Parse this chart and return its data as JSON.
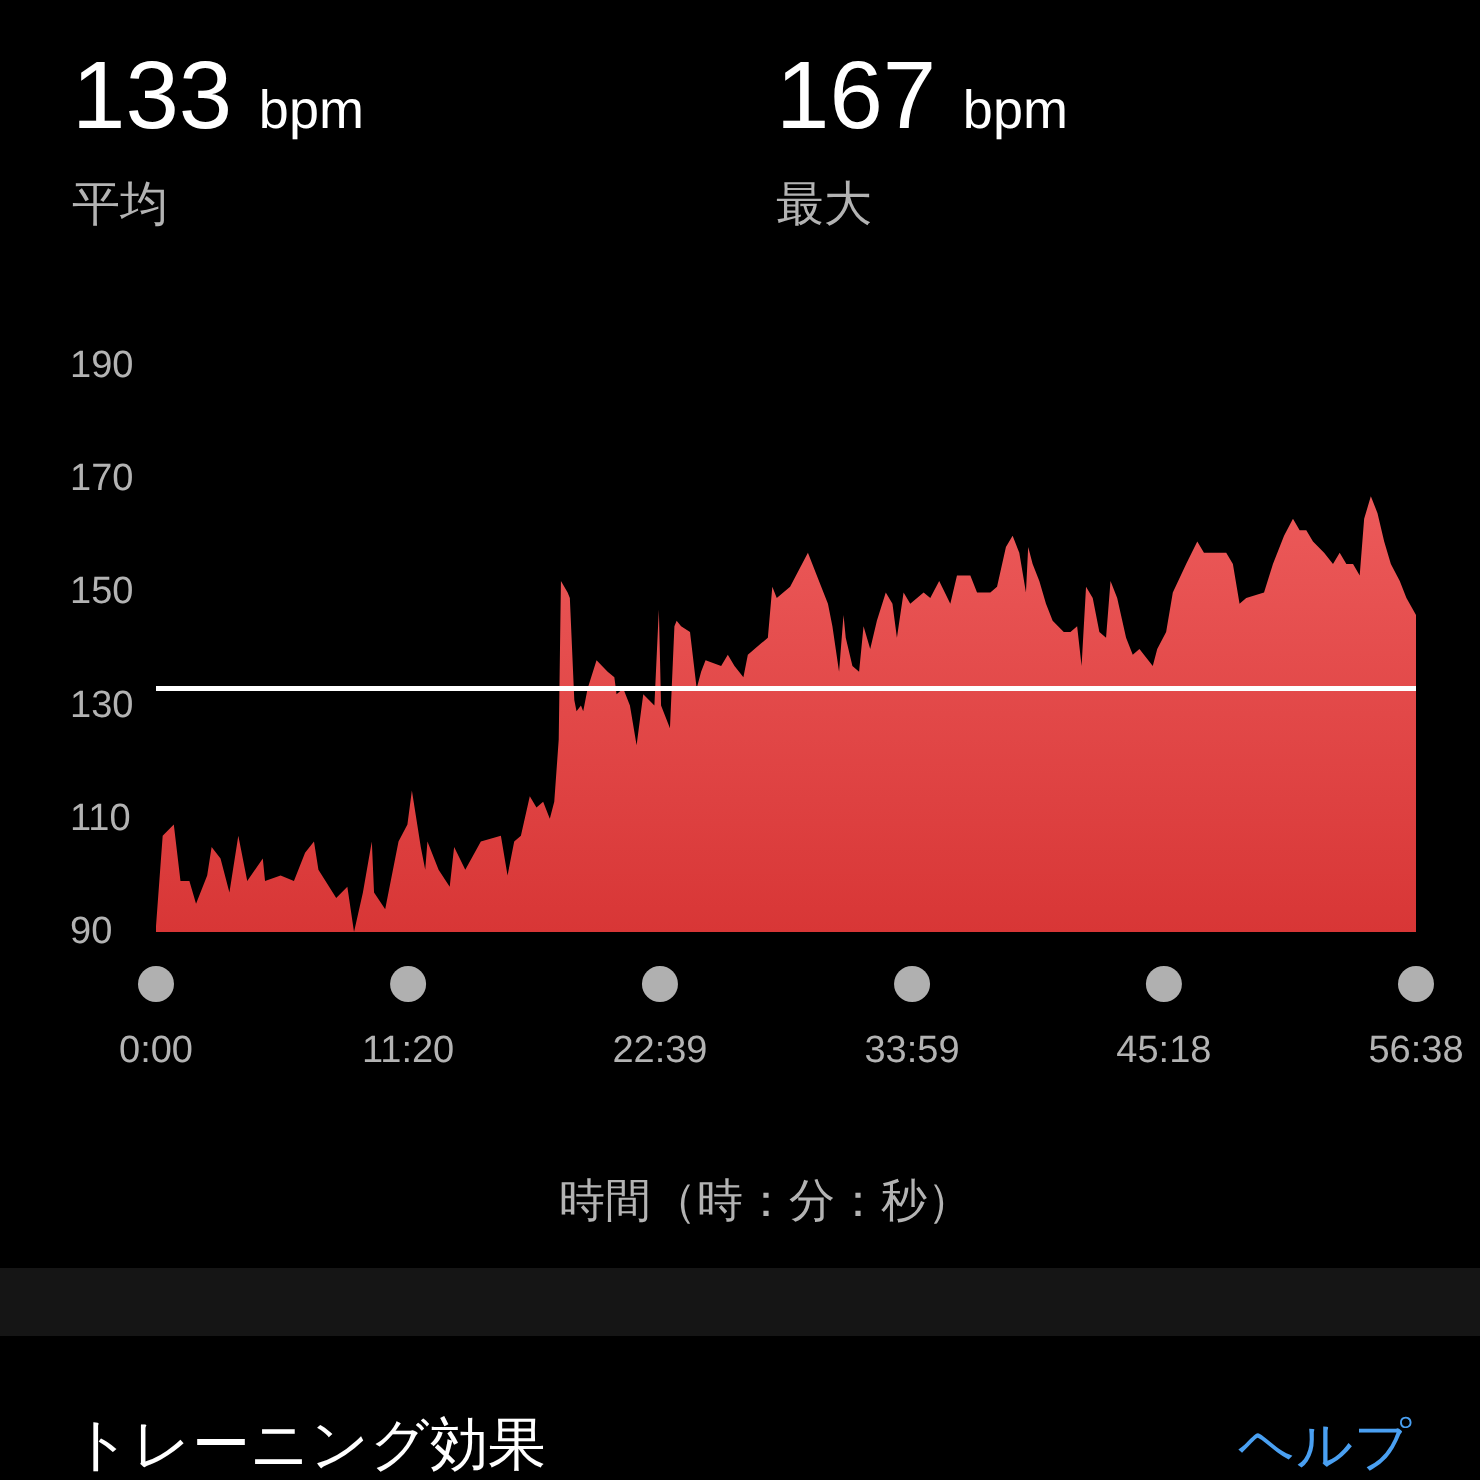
{
  "chart_data": {
    "type": "area",
    "x": [
      0,
      0.3,
      0.8,
      1.1,
      1.5,
      1.8,
      2.3,
      2.5,
      2.9,
      3.3,
      3.7,
      4.1,
      4.8,
      4.9,
      5.6,
      6.2,
      6.7,
      7.1,
      7.3,
      8.1,
      8.6,
      8.9,
      9.3,
      9.7,
      9.8,
      10.3,
      10.9,
      11.3,
      11.5,
      11.9,
      12.1,
      12.2,
      12.7,
      13.2,
      13.4,
      13.9,
      14.6,
      15.5,
      15.8,
      16.1,
      16.4,
      16.8,
      17.1,
      17.4,
      17.7,
      17.9,
      18.1,
      18.2,
      18.5,
      18.6,
      18.8,
      18.9,
      19.1,
      19.2,
      19.4,
      19.8,
      20.3,
      20.6,
      20.7,
      21.0,
      21.3,
      21.6,
      21.8,
      21.9,
      22.4,
      22.6,
      22.7,
      23.1,
      23.3,
      23.4,
      23.6,
      24.0,
      24.3,
      24.5,
      24.7,
      25.4,
      25.7,
      26.0,
      26.4,
      26.6,
      27.2,
      27.5,
      27.7,
      27.9,
      28.5,
      29.3,
      29.7,
      30.2,
      30.4,
      30.7,
      30.9,
      31.0,
      31.3,
      31.6,
      31.8,
      32.1,
      32.4,
      32.8,
      33.1,
      33.3,
      33.6,
      33.9,
      34.5,
      34.8,
      35.2,
      35.7,
      36.0,
      36.6,
      36.9,
      37.5,
      37.8,
      38.2,
      38.5,
      38.8,
      39.1,
      39.2,
      39.4,
      39.7,
      40.0,
      40.3,
      40.8,
      41.1,
      41.4,
      41.6,
      41.8,
      42.1,
      42.4,
      42.7,
      42.9,
      43.2,
      43.6,
      43.9,
      44.2,
      44.8,
      45.0,
      45.4,
      45.7,
      46.3,
      46.8,
      47.1,
      47.5,
      48.1,
      48.4,
      48.7,
      49.0,
      49.8,
      50.2,
      50.7,
      51.1,
      51.4,
      51.7,
      52.0,
      52.5,
      52.9,
      53.2,
      53.5,
      53.8,
      54.1,
      54.3,
      54.6,
      54.9,
      55.2,
      55.5,
      55.9,
      56.2,
      56.63
    ],
    "values": [
      91,
      107,
      109,
      99,
      99,
      95,
      100,
      105,
      103,
      97,
      107,
      99,
      103,
      99,
      100,
      99,
      104,
      106,
      101,
      96,
      98,
      90,
      97,
      106,
      97,
      94,
      106,
      109,
      115,
      105,
      101,
      106,
      101,
      98,
      105,
      101,
      106,
      107,
      100,
      106,
      107,
      114,
      112,
      113,
      110,
      113,
      124,
      152,
      150,
      149,
      131,
      129,
      130,
      129,
      133,
      138,
      136,
      135,
      132,
      133,
      130,
      123,
      129,
      132,
      130,
      147,
      130,
      126,
      144,
      145,
      144,
      143,
      133,
      136,
      138,
      137,
      139,
      137,
      135,
      139,
      141,
      142,
      151,
      149,
      151,
      157,
      153,
      148,
      144,
      136,
      146,
      142,
      137,
      136,
      144,
      140,
      145,
      150,
      148,
      142,
      150,
      148,
      150,
      149,
      152,
      148,
      153,
      153,
      150,
      150,
      151,
      158,
      160,
      157,
      150,
      158,
      155,
      152,
      148,
      145,
      143,
      143,
      144,
      137,
      151,
      149,
      143,
      142,
      152,
      149,
      142,
      139,
      140,
      137,
      140,
      143,
      150,
      155,
      159,
      157,
      157,
      157,
      155,
      148,
      149,
      150,
      155,
      160,
      163,
      161,
      161,
      159,
      157,
      155,
      157,
      155,
      155,
      153,
      163,
      167,
      164,
      159,
      155,
      152,
      149,
      146
    ],
    "color": "#e83a3a",
    "xlim": [
      0,
      56.63
    ],
    "xticks": [
      {
        "value": 0,
        "label": "0:00"
      },
      {
        "value": 11.33,
        "label": "11:20"
      },
      {
        "value": 22.65,
        "label": "22:39"
      },
      {
        "value": 33.98,
        "label": "33:59"
      },
      {
        "value": 45.3,
        "label": "45:18"
      },
      {
        "value": 56.63,
        "label": "56:38"
      }
    ],
    "ylim": [
      90,
      190
    ],
    "yticks": [
      90,
      110,
      130,
      150,
      170,
      190
    ],
    "xlabel": "時間（時：分：秒）",
    "ref_lines": [
      {
        "axis": "y",
        "value": 133,
        "color": "#ffffff"
      }
    ],
    "annotations": [
      "133 bpm",
      "平均",
      "167 bpm",
      "最大",
      "トレーニング効果",
      "ヘルプ"
    ]
  }
}
